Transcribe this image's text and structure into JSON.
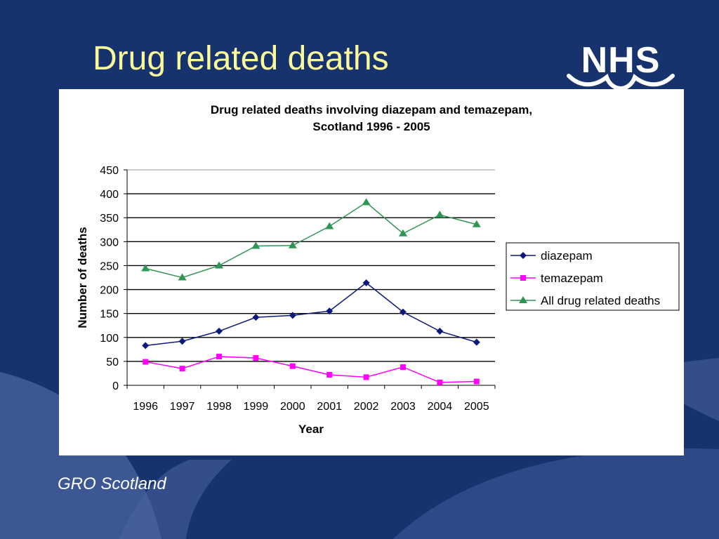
{
  "slide": {
    "title": "Drug related deaths",
    "source": "GRO Scotland",
    "logo_text": "NHS"
  },
  "colors": {
    "background": "#17336e",
    "title": "#fafa9c",
    "diazepam": "#0b1a7a",
    "temazepam": "#ff00ff",
    "all_deaths": "#2f9555"
  },
  "chart_data": {
    "type": "line",
    "title_lines": [
      "Drug related deaths involving diazepam and temazepam,",
      "Scotland 1996 - 2005"
    ],
    "xlabel": "Year",
    "ylabel": "Number of deaths",
    "ylim": [
      0,
      450
    ],
    "yticks": [
      0,
      50,
      100,
      150,
      200,
      250,
      300,
      350,
      400,
      450
    ],
    "grid": true,
    "legend": "right",
    "categories": [
      "1996",
      "1997",
      "1998",
      "1999",
      "2000",
      "2001",
      "2002",
      "2003",
      "2004",
      "2005"
    ],
    "series": [
      {
        "name": "diazepam",
        "marker": "diamond",
        "color": "#0b1a7a",
        "values": [
          83,
          92,
          113,
          142,
          146,
          155,
          214,
          153,
          113,
          90
        ]
      },
      {
        "name": "temazepam",
        "marker": "square",
        "color": "#ff00ff",
        "values": [
          49,
          35,
          60,
          57,
          40,
          22,
          17,
          38,
          6,
          8
        ]
      },
      {
        "name": "All drug related deaths",
        "marker": "triangle",
        "color": "#2f9555",
        "values": [
          244,
          225,
          250,
          291,
          292,
          332,
          382,
          317,
          356,
          336
        ]
      }
    ]
  }
}
